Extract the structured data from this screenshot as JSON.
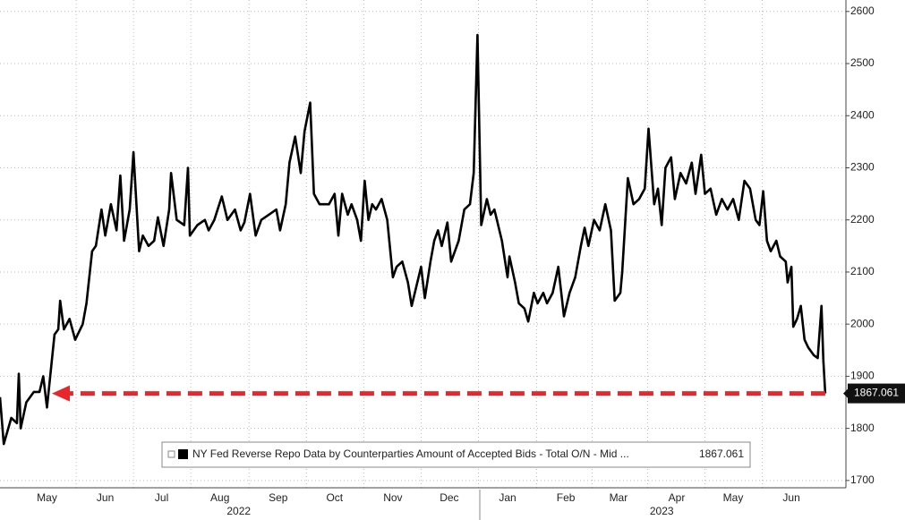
{
  "chart_data": {
    "type": "line",
    "series": [
      {
        "name": "NY Fed Reverse Repo Data by Counterparties Amount of Accepted Bids - Total O/N - Mid ...",
        "color": "#000000",
        "x": [
          0,
          2,
          6,
          9,
          10,
          11,
          14,
          18,
          21,
          23,
          25,
          29,
          31,
          32,
          34,
          37,
          40,
          44,
          46,
          49,
          51,
          54,
          56,
          59,
          62,
          64,
          66,
          69,
          71,
          74,
          76,
          79,
          82,
          84,
          87,
          90,
          91,
          94,
          98,
          100,
          101,
          105,
          109,
          111,
          114,
          118,
          121,
          125,
          128,
          130,
          133,
          136,
          139,
          143,
          147,
          149,
          152,
          154,
          157,
          160,
          162,
          165,
          167,
          170,
          172,
          175,
          178,
          180,
          182,
          185,
          187,
          190,
          192,
          194,
          196,
          198,
          200,
          203,
          206,
          209,
          211,
          214,
          217,
          219,
          222,
          224,
          226,
          229,
          231,
          233,
          235,
          238,
          240,
          244,
          247,
          250,
          252,
          254,
          256,
          259,
          261,
          263,
          267,
          270,
          271,
          274,
          276,
          279,
          281,
          284,
          286,
          289,
          291,
          294,
          297,
          300,
          303,
          306,
          309,
          311,
          313,
          316,
          319,
          322,
          325,
          327,
          330,
          331,
          334,
          337,
          340,
          343,
          345,
          348,
          350,
          352,
          354,
          357,
          359,
          362,
          365,
          368,
          370,
          373,
          375,
          378,
          381,
          384,
          387,
          390,
          393,
          396,
          399,
          402,
          404,
          406,
          408,
          410,
          413,
          415,
          418,
          419,
          421,
          422,
          424,
          426,
          428,
          430,
          433,
          435,
          437,
          438,
          439
        ],
        "values": [
          1860,
          1770,
          1820,
          1810,
          1905,
          1800,
          1850,
          1870,
          1870,
          1900,
          1840,
          1980,
          1990,
          2045,
          1990,
          2010,
          1970,
          2000,
          2040,
          2140,
          2150,
          2220,
          2170,
          2230,
          2180,
          2285,
          2160,
          2220,
          2330,
          2140,
          2170,
          2150,
          2160,
          2205,
          2150,
          2220,
          2290,
          2200,
          2190,
          2300,
          2170,
          2190,
          2200,
          2180,
          2200,
          2245,
          2200,
          2220,
          2180,
          2195,
          2250,
          2170,
          2200,
          2210,
          2220,
          2180,
          2230,
          2310,
          2360,
          2290,
          2370,
          2425,
          2250,
          2230,
          2230,
          2230,
          2250,
          2170,
          2250,
          2210,
          2230,
          2200,
          2160,
          2275,
          2200,
          2230,
          2220,
          2240,
          2200,
          2090,
          2110,
          2120,
          2080,
          2035,
          2080,
          2110,
          2050,
          2120,
          2160,
          2180,
          2150,
          2195,
          2120,
          2160,
          2220,
          2230,
          2290,
          2555,
          2190,
          2240,
          2210,
          2220,
          2160,
          2090,
          2130,
          2080,
          2040,
          2030,
          2005,
          2060,
          2040,
          2060,
          2040,
          2060,
          2110,
          2015,
          2060,
          2090,
          2150,
          2185,
          2150,
          2200,
          2180,
          2230,
          2180,
          2045,
          2060,
          2100,
          2280,
          2230,
          2240,
          2260,
          2375,
          2230,
          2260,
          2190,
          2300,
          2320,
          2240,
          2290,
          2270,
          2310,
          2250,
          2325,
          2250,
          2260,
          2210,
          2240,
          2220,
          2240,
          2200,
          2275,
          2260,
          2200,
          2190,
          2255,
          2160,
          2140,
          2160,
          2130,
          2120,
          2080,
          2110,
          1995,
          2010,
          2035,
          1970,
          1955,
          1940,
          1935,
          2035,
          1930,
          1867.061
        ]
      }
    ],
    "xlim": [
      0,
      450
    ],
    "xticks": [
      {
        "value": 25,
        "label": "May"
      },
      {
        "value": 56,
        "label": "Jun"
      },
      {
        "value": 86,
        "label": "Jul"
      },
      {
        "value": 117,
        "label": "Aug"
      },
      {
        "value": 148,
        "label": "Sep"
      },
      {
        "value": 178,
        "label": "Oct"
      },
      {
        "value": 209,
        "label": "Nov"
      },
      {
        "value": 239,
        "label": "Dec"
      },
      {
        "value": 270,
        "label": "Jan"
      },
      {
        "value": 301,
        "label": "Feb"
      },
      {
        "value": 329,
        "label": "Mar"
      },
      {
        "value": 360,
        "label": "Apr"
      },
      {
        "value": 390,
        "label": "May"
      },
      {
        "value": 421,
        "label": "Jun"
      }
    ],
    "year_labels": [
      {
        "value": 127,
        "label": "2022"
      },
      {
        "value": 352,
        "label": "2023"
      }
    ],
    "ylim": [
      1686,
      2622
    ],
    "yticks": [
      1700,
      1800,
      1900,
      2000,
      2100,
      2200,
      2300,
      2400,
      2500,
      2600
    ],
    "grid": true,
    "arrow_color": "#e8262c"
  }
}
